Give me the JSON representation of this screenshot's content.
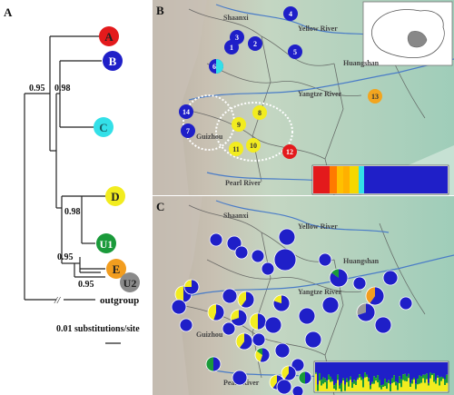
{
  "panel_a": {
    "label": "A",
    "clades": [
      {
        "name": "A",
        "color": "#e31a1c",
        "text_color": "#222222"
      },
      {
        "name": "B",
        "color": "#1f1fc8",
        "text_color": "#ffffff"
      },
      {
        "name": "C",
        "color": "#33e0e8",
        "text_color": "#1a5f66"
      },
      {
        "name": "D",
        "color": "#f2ec1f",
        "text_color": "#222222"
      },
      {
        "name": "U1",
        "color": "#1a9a3a",
        "text_color": "#ffffff"
      },
      {
        "name": "E",
        "color": "#f29d1f",
        "text_color": "#222222"
      },
      {
        "name": "U2",
        "color": "#8a8a8a",
        "text_color": "#222222"
      }
    ],
    "support_values": [
      "0.95",
      "0.98",
      "0.98",
      "0.95",
      "0.95"
    ],
    "outgroup_label": "outgroup",
    "break_mark": "//",
    "scale_label": "0.01 substitutions/site"
  },
  "panel_b": {
    "label": "B",
    "map_labels": [
      "Shaanxi",
      "Yellow River",
      "Huangshan",
      "Yangtze River",
      "Guizhou",
      "Pearl River"
    ],
    "sites": [
      {
        "id": "1",
        "color": "#1f1fc8",
        "text_color": "#ffffff"
      },
      {
        "id": "2",
        "color": "#1f1fc8",
        "text_color": "#ffffff"
      },
      {
        "id": "3",
        "color": "#1f1fc8",
        "text_color": "#ffffff"
      },
      {
        "id": "4",
        "color": "#1f1fc8",
        "text_color": "#ffffff"
      },
      {
        "id": "5",
        "color": "#1f1fc8",
        "text_color": "#ffffff"
      },
      {
        "id": "6",
        "color": "#1f1fc8",
        "color2": "#33e0e8",
        "text_color": "#ffffff"
      },
      {
        "id": "7",
        "color": "#1f1fc8",
        "text_color": "#ffffff"
      },
      {
        "id": "8",
        "color": "#f2ec1f",
        "text_color": "#333333"
      },
      {
        "id": "9",
        "color": "#f2ec1f",
        "text_color": "#333333"
      },
      {
        "id": "10",
        "color": "#f2ec1f",
        "text_color": "#333333"
      },
      {
        "id": "11",
        "color": "#f2ec1f",
        "text_color": "#333333"
      },
      {
        "id": "12",
        "color": "#e31a1c",
        "text_color": "#ffffff"
      },
      {
        "id": "13",
        "color": "#f2a51f",
        "text_color": "#333333"
      },
      {
        "id": "14",
        "color": "#1f1fc8",
        "text_color": "#ffffff"
      }
    ],
    "bar_colors": [
      "#e31a1c",
      "#e31a1c",
      "#ff7a00",
      "#ffc000",
      "#ffb000",
      "#f5d800",
      "#33e0e8",
      "#1f1fc8"
    ]
  },
  "panel_c": {
    "label": "C",
    "map_labels": [
      "Shaanxi",
      "Yellow River",
      "Huangshan",
      "Yangtze River",
      "Guizhou",
      "Pearl River"
    ],
    "colors": {
      "blue": "#1f1fc8",
      "yellow": "#f2ec1f",
      "green": "#1a9a3a",
      "grey": "#999999",
      "orange": "#f29d1f"
    }
  }
}
